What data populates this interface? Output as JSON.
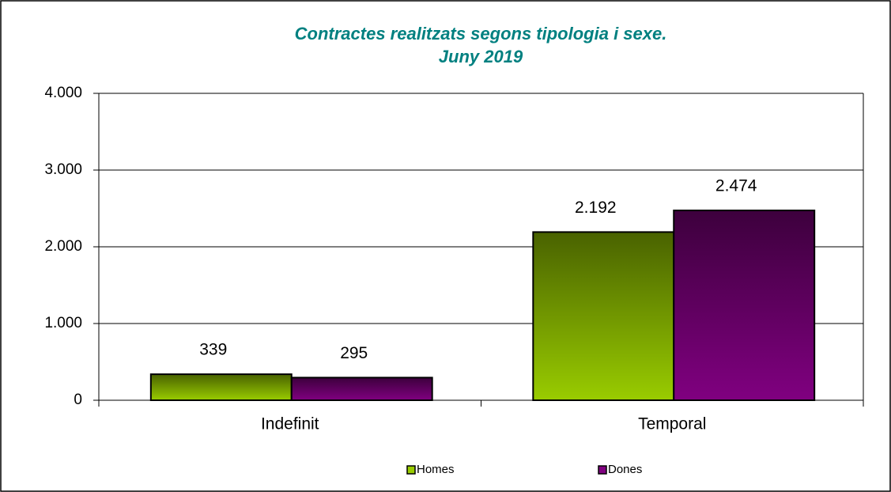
{
  "chart_data": {
    "type": "bar",
    "title": "Contractes realitzats segons tipologia i sexe.",
    "subtitle": "Juny 2019",
    "categories": [
      "Indefinit",
      "Temporal"
    ],
    "series": [
      {
        "name": "Homes",
        "color": "#99cc00",
        "values": [
          339,
          2192
        ],
        "value_labels": [
          "339",
          "2.192"
        ]
      },
      {
        "name": "Dones",
        "color": "#800080",
        "values": [
          295,
          2474
        ],
        "value_labels": [
          "295",
          "2.474"
        ]
      }
    ],
    "ylim": [
      0,
      4000
    ],
    "yticks": [
      0,
      {
        "value": 1000,
        "label": "1.000"
      },
      {
        "value": 2000,
        "label": "2.000"
      },
      {
        "value": 3000,
        "label": "3.000"
      },
      {
        "value": 4000,
        "label": "4.000"
      }
    ],
    "grid": true,
    "legend": "bottom"
  }
}
